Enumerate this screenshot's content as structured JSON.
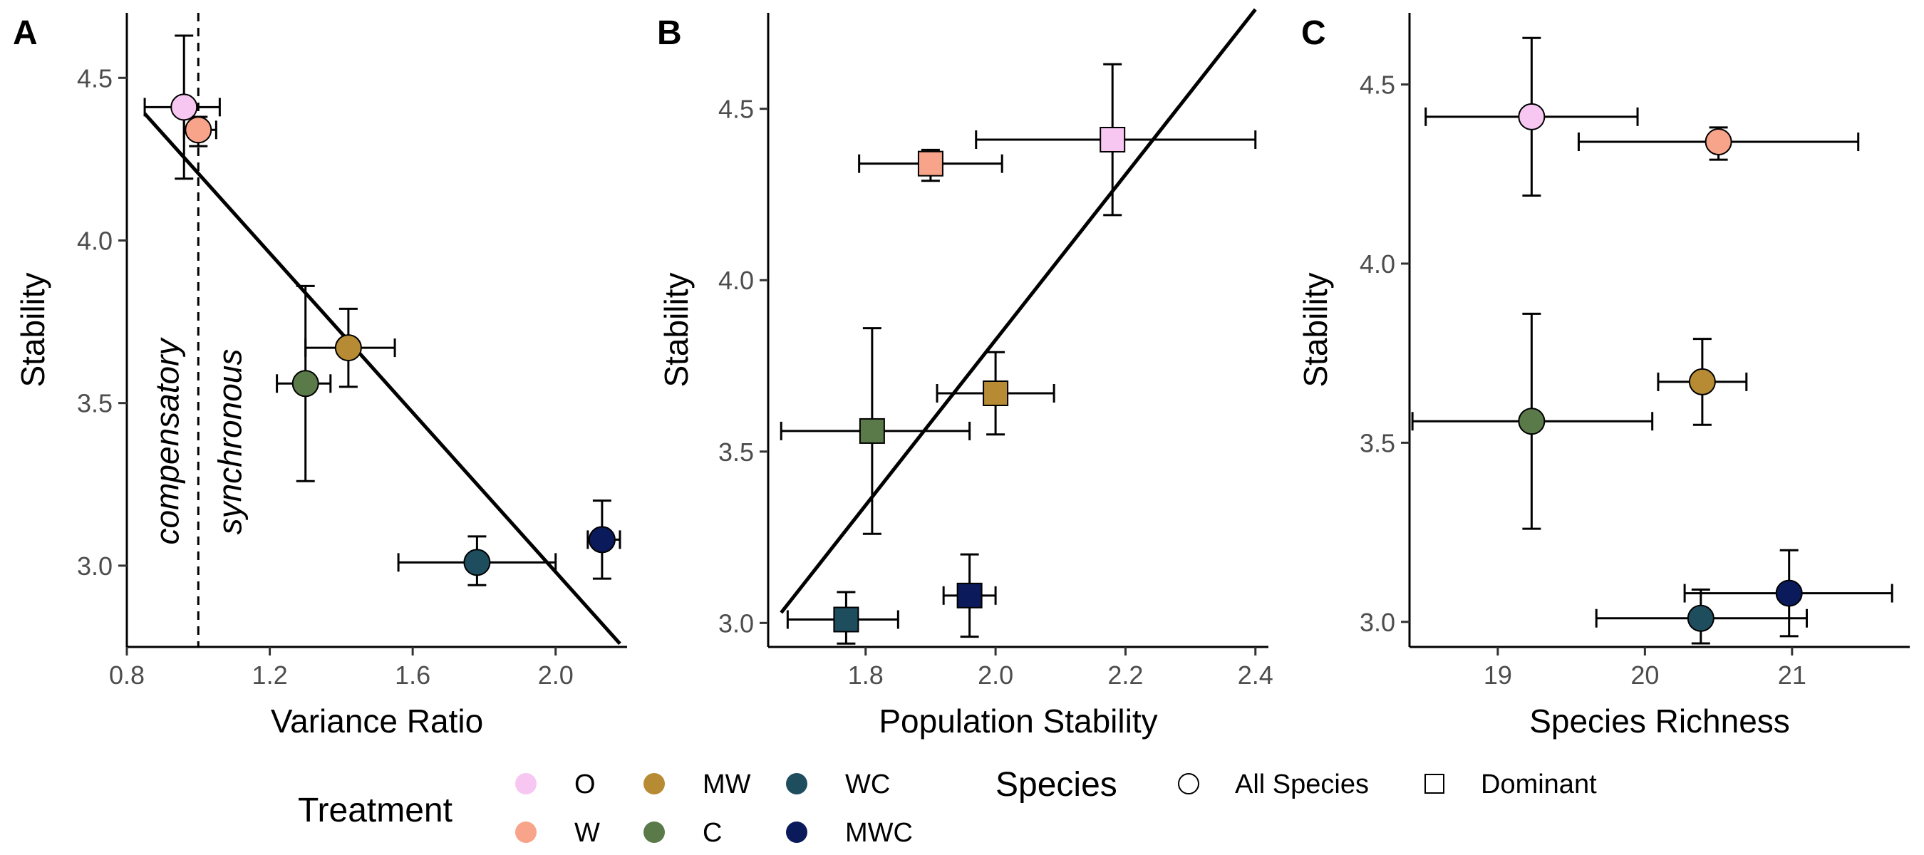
{
  "chart_data": [
    {
      "panel": "A",
      "type": "scatter",
      "xlabel": "Variance Ratio",
      "ylabel": "Stability",
      "xlim": [
        0.8,
        2.2
      ],
      "ylim": [
        2.75,
        4.7
      ],
      "xticks": [
        "0.8",
        "1.2",
        "1.6",
        "2.0"
      ],
      "yticks": [
        "3.0",
        "3.5",
        "4.0",
        "4.5"
      ],
      "marker": "circle",
      "points": [
        {
          "treatment": "O",
          "x": 0.96,
          "y": 4.41,
          "xerr": [
            0.85,
            1.06
          ],
          "yerr": [
            4.19,
            4.63
          ]
        },
        {
          "treatment": "W",
          "x": 1.0,
          "y": 4.34,
          "xerr": [
            0.96,
            1.05
          ],
          "yerr": [
            4.29,
            4.38
          ]
        },
        {
          "treatment": "MW",
          "x": 1.42,
          "y": 3.67,
          "xerr": [
            1.3,
            1.55
          ],
          "yerr": [
            3.55,
            3.79
          ]
        },
        {
          "treatment": "C",
          "x": 1.3,
          "y": 3.56,
          "xerr": [
            1.22,
            1.37
          ],
          "yerr": [
            3.26,
            3.86
          ]
        },
        {
          "treatment": "WC",
          "x": 1.78,
          "y": 3.01,
          "xerr": [
            1.56,
            2.0
          ],
          "yerr": [
            2.94,
            3.09
          ]
        },
        {
          "treatment": "MWC",
          "x": 2.13,
          "y": 3.08,
          "xerr": [
            2.09,
            2.18
          ],
          "yerr": [
            2.96,
            3.2
          ]
        }
      ],
      "fit_line": {
        "x": [
          0.85,
          2.18
        ],
        "y": [
          4.39,
          2.76
        ]
      },
      "reference_line_x": 1.0,
      "annotations": {
        "left": "compensatory",
        "right": "synchronous"
      }
    },
    {
      "panel": "B",
      "type": "scatter",
      "xlabel": "Population Stability",
      "ylabel": "Stability",
      "xlim": [
        1.65,
        2.42
      ],
      "ylim": [
        2.93,
        4.78
      ],
      "xticks": [
        "1.8",
        "2.0",
        "2.2",
        "2.4"
      ],
      "yticks": [
        "3.0",
        "3.5",
        "4.0",
        "4.5"
      ],
      "marker": "square",
      "points": [
        {
          "treatment": "O",
          "x": 2.18,
          "y": 4.41,
          "xerr": [
            1.97,
            2.4
          ],
          "yerr": [
            4.19,
            4.63
          ]
        },
        {
          "treatment": "W",
          "x": 1.9,
          "y": 4.34,
          "xerr": [
            1.79,
            2.01
          ],
          "yerr": [
            4.29,
            4.38
          ]
        },
        {
          "treatment": "MW",
          "x": 2.0,
          "y": 3.67,
          "xerr": [
            1.91,
            2.09
          ],
          "yerr": [
            3.55,
            3.79
          ]
        },
        {
          "treatment": "C",
          "x": 1.81,
          "y": 3.56,
          "xerr": [
            1.67,
            1.96
          ],
          "yerr": [
            3.26,
            3.86
          ]
        },
        {
          "treatment": "WC",
          "x": 1.77,
          "y": 3.01,
          "xerr": [
            1.68,
            1.85
          ],
          "yerr": [
            2.94,
            3.09
          ]
        },
        {
          "treatment": "MWC",
          "x": 1.96,
          "y": 3.08,
          "xerr": [
            1.92,
            2.0
          ],
          "yerr": [
            2.96,
            3.2
          ]
        }
      ],
      "fit_line": {
        "x": [
          1.67,
          2.4
        ],
        "y": [
          3.03,
          4.79
        ]
      }
    },
    {
      "panel": "C",
      "type": "scatter",
      "xlabel": "Species Richness",
      "ylabel": "Stability",
      "xlim": [
        18.4,
        21.8
      ],
      "ylim": [
        2.93,
        4.7
      ],
      "xticks": [
        "19",
        "20",
        "21"
      ],
      "yticks": [
        "3.0",
        "3.5",
        "4.0",
        "4.5"
      ],
      "marker": "circle",
      "points": [
        {
          "treatment": "O",
          "x": 19.23,
          "y": 4.41,
          "xerr": [
            18.51,
            19.95
          ],
          "yerr": [
            4.19,
            4.63
          ]
        },
        {
          "treatment": "W",
          "x": 20.5,
          "y": 4.34,
          "xerr": [
            19.55,
            21.45
          ],
          "yerr": [
            4.29,
            4.38
          ]
        },
        {
          "treatment": "MW",
          "x": 20.39,
          "y": 3.67,
          "xerr": [
            20.09,
            20.69
          ],
          "yerr": [
            3.55,
            3.79
          ]
        },
        {
          "treatment": "C",
          "x": 19.23,
          "y": 3.56,
          "xerr": [
            18.42,
            20.05
          ],
          "yerr": [
            3.26,
            3.86
          ]
        },
        {
          "treatment": "WC",
          "x": 20.38,
          "y": 3.01,
          "xerr": [
            19.67,
            21.1
          ],
          "yerr": [
            2.94,
            3.09
          ]
        },
        {
          "treatment": "MWC",
          "x": 20.98,
          "y": 3.08,
          "xerr": [
            20.27,
            21.68
          ],
          "yerr": [
            2.96,
            3.2
          ]
        }
      ]
    }
  ],
  "treatment_colors": {
    "O": "#f7c7f2",
    "W": "#f7a48a",
    "MW": "#b68b33",
    "C": "#5a7a4a",
    "WC": "#1e4d5e",
    "MWC": "#0b1a5a"
  },
  "legend": {
    "treatment_title": "Treatment",
    "treatments": [
      "O",
      "MW",
      "WC",
      "W",
      "C",
      "MWC"
    ],
    "species_title": "Species",
    "species": [
      {
        "label": "All Species",
        "shape": "circle"
      },
      {
        "label": "Dominant",
        "shape": "square"
      }
    ]
  }
}
